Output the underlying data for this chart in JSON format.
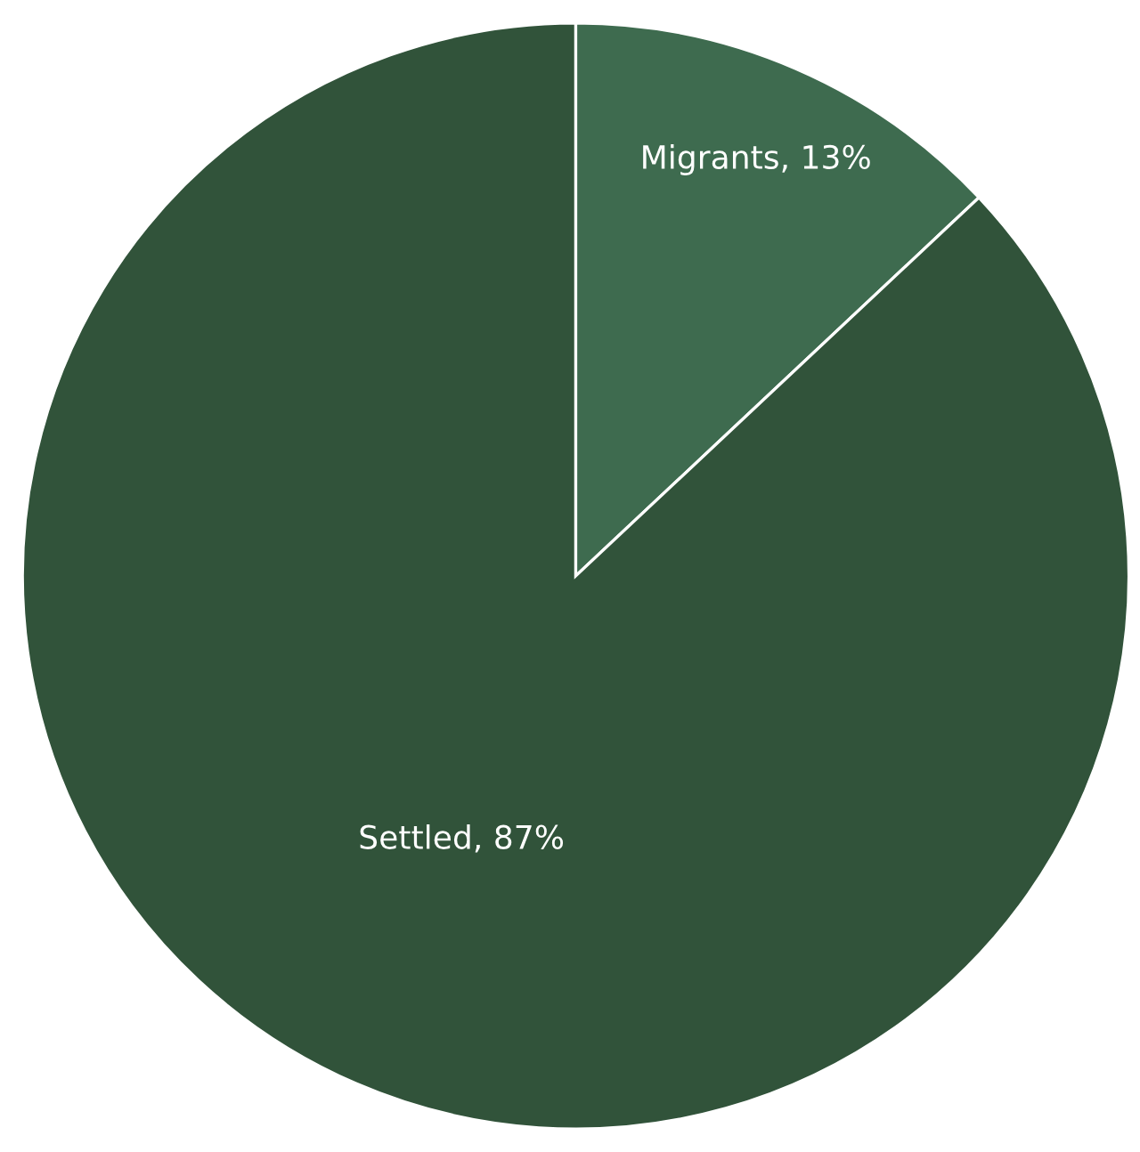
{
  "chart_data": {
    "type": "pie",
    "categories": [
      "Migrants",
      "Settled"
    ],
    "values": [
      13,
      87
    ],
    "colors": [
      "#3e6b4f",
      "#31533a"
    ],
    "value_labels": [
      "13%",
      "87%"
    ],
    "legend": false
  }
}
